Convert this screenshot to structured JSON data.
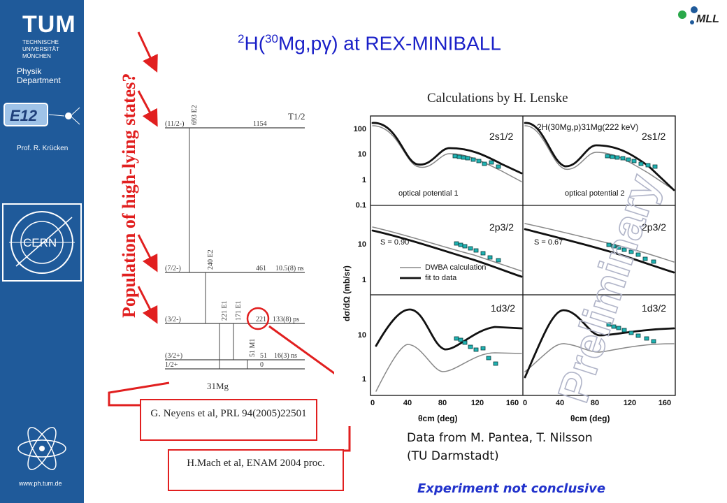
{
  "sidebar": {
    "logo_text": "TUM",
    "university_lines": [
      "TECHNISCHE",
      "UNIVERSITÄT",
      "MÜNCHEN"
    ],
    "department_lines": [
      "Physik",
      "Department"
    ],
    "e12_label": "E12",
    "professor": "Prof. R. Krücken",
    "cern_label": "CERN",
    "url": "www.ph.tum.de"
  },
  "header": {
    "logo_text": "MLL",
    "title_pre": "2",
    "title_a": "H(",
    "title_sup": "30",
    "title_b": "Mg,p",
    "title_gamma": "γ",
    "title_c": ") at REX-MINIBALL"
  },
  "vertical_title": "Population of high-lying states?",
  "level_scheme": {
    "half_life_header": "T1/2",
    "nucleus": "31Mg",
    "levels": [
      {
        "spin": "(11/2-)",
        "energy": "1154",
        "halflife": ""
      },
      {
        "spin": "(7/2-)",
        "energy": "461",
        "halflife": "10.5(8) ns"
      },
      {
        "spin": "(3/2-)",
        "energy": "221",
        "halflife": "133(8) ps"
      },
      {
        "spin": "(3/2+)",
        "energy": "51",
        "halflife": "16(3) ns"
      },
      {
        "spin": "1/2+",
        "energy": "0",
        "halflife": ""
      }
    ],
    "transitions": [
      {
        "label": "693 E2"
      },
      {
        "label": "240 E2"
      },
      {
        "label": "221 E1"
      },
      {
        "label": "171 E1"
      },
      {
        "label": "51 M1"
      }
    ]
  },
  "calc_title": "Calculations by H. Lenske",
  "plot": {
    "reaction_label": "2H(30Mg,p)31Mg(222 keV)",
    "watermark": "Preliminary",
    "ylabel": "dσ/dΩ (mb/sr)",
    "xlabel": "θcm (deg)",
    "x_ticks": [
      "0",
      "40",
      "80",
      "120",
      "160"
    ],
    "panels": [
      {
        "state": "2s1/2",
        "left_text": "optical potential 1",
        "right_text": "optical potential 2",
        "y_ticks": [
          "100",
          "10",
          "1",
          "0.1"
        ]
      },
      {
        "state": "2p3/2",
        "left_text": "S = 0.90",
        "right_text": "S = 0.67",
        "y_ticks": [
          "10",
          "1"
        ],
        "legend": [
          "DWBA calculation",
          "fit to data"
        ]
      },
      {
        "state": "1d3/2",
        "left_text": "",
        "right_text": "",
        "y_ticks": [
          "10",
          "1"
        ]
      }
    ]
  },
  "refs": [
    {
      "text": "G. Neyens et al, PRL 94(2005)22501"
    },
    {
      "text": "H.Mach et al, ENAM 2004 proc."
    }
  ],
  "data_from": [
    "Data from M. Pantea, T. Nilsson",
    "(TU Darmstadt)"
  ],
  "conclusion": "Experiment not conclusive",
  "colors": {
    "sidebar": "#1f5a9a",
    "title_blue": "#1a20c8",
    "red": "#e11f1f",
    "marker": "#1fb3b3"
  }
}
